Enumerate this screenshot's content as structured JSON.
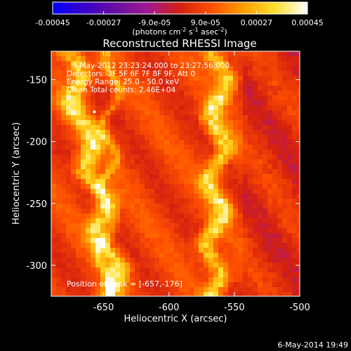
{
  "colorbar": {
    "ticks": [
      {
        "value": -0.00045,
        "label": "-0.00045"
      },
      {
        "value": -0.00027,
        "label": "-0.00027"
      },
      {
        "value": -9e-05,
        "label": "-9.0e-05"
      },
      {
        "value": 9e-05,
        "label": "9.0e-05"
      },
      {
        "value": 0.00027,
        "label": "0.00027"
      },
      {
        "value": 0.00045,
        "label": "0.00045"
      }
    ],
    "range": [
      -0.00045,
      0.00045
    ],
    "unit_label": "(photons cm-2 s-1 asec-2)",
    "unit_parts": [
      {
        "t": "(photons cm"
      },
      {
        "t": "-2",
        "sup": true
      },
      {
        "t": " s"
      },
      {
        "t": "-1",
        "sup": true
      },
      {
        "t": " asec"
      },
      {
        "t": "-2",
        "sup": true
      },
      {
        "t": ")"
      }
    ],
    "colormap": [
      "#0000ff",
      "#3a00c8",
      "#6a10a0",
      "#a01890",
      "#d42010",
      "#ff5000",
      "#ffa000",
      "#ffe030",
      "#ffffff"
    ]
  },
  "chart_data": {
    "type": "heatmap",
    "title": "Reconstructed RHESSI Image",
    "xlabel": "Heliocentric X (arcsec)",
    "ylabel": "Heliocentric Y (arcsec)",
    "xlim": [
      -690,
      -500
    ],
    "ylim": [
      -325,
      -127
    ],
    "x_ticks": [
      -650,
      -600,
      -550,
      -500
    ],
    "y_ticks": [
      -150,
      -200,
      -250,
      -300
    ],
    "annotations": [
      "9-May-2012 23:23:24.000 to 23:27:56.000",
      "Detectors: 3F 5F 6F 7F 8F 9F, Att 0",
      "Energy Range: 25.0 - 50.0 keV",
      "Clean    Total counts: 2.46E+04"
    ],
    "peak_label": "Position of Peak = [-657,-176]",
    "peak_position": [
      -657,
      -176
    ],
    "bright_bands": [
      {
        "x_at_top": -676,
        "x_at_bottom": -640,
        "width": 9
      },
      {
        "x_at_top": -560,
        "x_at_bottom": -567,
        "width": 8
      },
      {
        "x_at_top": -643,
        "x_at_bottom": -650,
        "width": 4
      }
    ]
  },
  "footer": {
    "timestamp": "6-May-2014 19:49"
  }
}
